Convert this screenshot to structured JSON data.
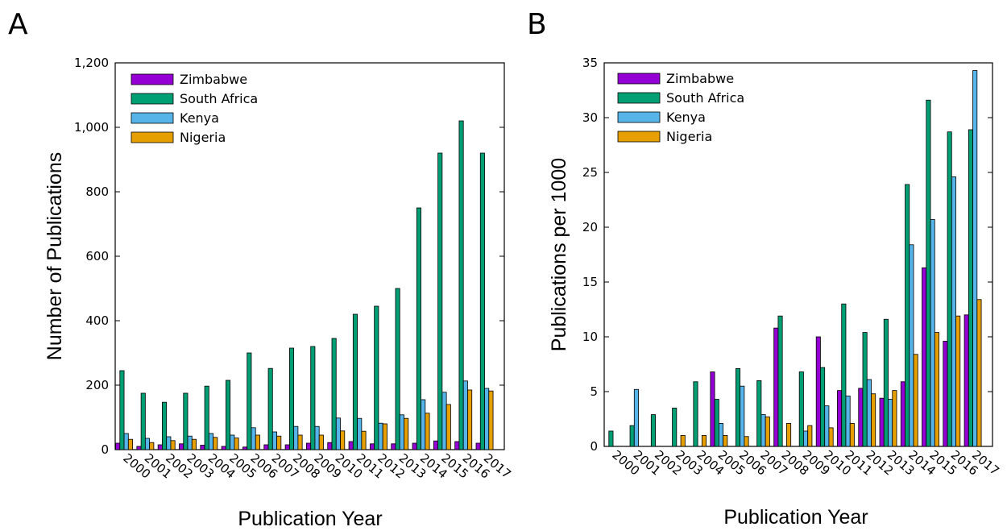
{
  "chart_data": [
    {
      "panel_label": "A",
      "type": "bar",
      "xlabel": "Publication Year",
      "ylabel": "Number of Publications",
      "ylim": [
        0,
        1200
      ],
      "yticks": [
        0,
        200,
        400,
        600,
        800,
        1000,
        1200
      ],
      "ytick_labels": [
        "0",
        "200",
        "400",
        "600",
        "800",
        "1,000",
        "1,200"
      ],
      "categories": [
        "2000",
        "2001",
        "2002",
        "2003",
        "2004",
        "2005",
        "2006",
        "2007",
        "2008",
        "2009",
        "2010",
        "2011",
        "2012",
        "2013",
        "2014",
        "2015",
        "2016",
        "2017"
      ],
      "legend_position": "top-left",
      "series": [
        {
          "name": "Zimbabwe",
          "color": "#9400D3",
          "values": [
            20,
            10,
            15,
            18,
            14,
            10,
            8,
            15,
            15,
            20,
            22,
            25,
            18,
            18,
            20,
            27,
            25,
            20
          ]
        },
        {
          "name": "South Africa",
          "color": "#009E73",
          "values": [
            245,
            175,
            147,
            175,
            197,
            215,
            300,
            252,
            315,
            320,
            345,
            420,
            445,
            500,
            750,
            920,
            1020,
            920
          ]
        },
        {
          "name": "Kenya",
          "color": "#56B4E9",
          "values": [
            50,
            35,
            40,
            42,
            50,
            45,
            68,
            55,
            72,
            72,
            98,
            97,
            82,
            108,
            155,
            178,
            213,
            190
          ]
        },
        {
          "name": "Nigeria",
          "color": "#E69F00",
          "values": [
            32,
            22,
            28,
            32,
            38,
            36,
            45,
            42,
            45,
            45,
            58,
            57,
            80,
            97,
            113,
            140,
            185,
            182
          ]
        }
      ]
    },
    {
      "panel_label": "B",
      "type": "bar",
      "xlabel": "Publication Year",
      "ylabel": "Publications per 1000",
      "ylim": [
        0,
        35
      ],
      "yticks": [
        0,
        5,
        10,
        15,
        20,
        25,
        30,
        35
      ],
      "ytick_labels": [
        "0",
        "5",
        "10",
        "15",
        "20",
        "25",
        "30",
        "35"
      ],
      "categories": [
        "2000",
        "2001",
        "2002",
        "2003",
        "2004",
        "2005",
        "2006",
        "2007",
        "2008",
        "2009",
        "2010",
        "2011",
        "2012",
        "2013",
        "2014",
        "2015",
        "2016",
        "2017"
      ],
      "legend_position": "top-left",
      "series": [
        {
          "name": "Zimbabwe",
          "color": "#9400D3",
          "values": [
            0,
            0,
            0,
            0,
            0,
            6.8,
            0,
            0,
            10.8,
            0,
            10.0,
            5.1,
            5.3,
            4.4,
            5.9,
            16.3,
            9.6,
            12.0
          ]
        },
        {
          "name": "South Africa",
          "color": "#009E73",
          "values": [
            1.4,
            1.9,
            2.9,
            3.5,
            5.9,
            4.3,
            7.1,
            6.0,
            11.9,
            6.8,
            7.2,
            13.0,
            10.4,
            11.6,
            23.9,
            31.6,
            28.7,
            28.9
          ]
        },
        {
          "name": "Kenya",
          "color": "#56B4E9",
          "values": [
            0,
            5.2,
            0,
            0,
            0,
            2.1,
            5.5,
            2.9,
            0,
            1.4,
            3.7,
            4.6,
            6.1,
            4.3,
            18.4,
            20.7,
            24.6,
            34.3
          ]
        },
        {
          "name": "Nigeria",
          "color": "#E69F00",
          "values": [
            0,
            0,
            0,
            1.0,
            1.0,
            1.0,
            0.9,
            2.7,
            2.1,
            1.9,
            1.7,
            2.1,
            4.8,
            5.1,
            8.4,
            10.4,
            11.9,
            13.4
          ]
        }
      ]
    }
  ]
}
